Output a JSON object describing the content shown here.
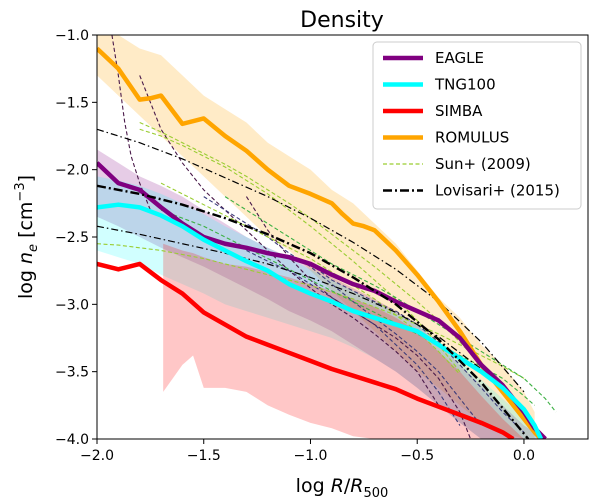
{
  "chart_data": {
    "type": "line",
    "title": "Density",
    "xlabel_main": "log ",
    "xlabel_var": "R",
    "xlabel_sep": "/",
    "xlabel_var2": "R",
    "xlabel_sub": "500",
    "ylabel_main": "log ",
    "ylabel_var": "n",
    "ylabel_sub": "e",
    "ylabel_unit": " [cm",
    "ylabel_sup": "−3",
    "ylabel_end": "]",
    "xlim": [
      -2.0,
      0.3
    ],
    "ylim": [
      -4.0,
      -1.0
    ],
    "x_ticks": [
      -2.0,
      -1.5,
      -1.0,
      -0.5,
      0.0
    ],
    "x_tick_labels": [
      "−2.0",
      "−1.5",
      "−1.0",
      "−0.5",
      "0.0"
    ],
    "y_ticks": [
      -4.0,
      -3.5,
      -3.0,
      -2.5,
      -2.0,
      -1.5,
      -1.0
    ],
    "y_tick_labels": [
      "−4.0",
      "−3.5",
      "−3.0",
      "−2.5",
      "−2.0",
      "−1.5",
      "−1.0"
    ],
    "grid": false,
    "legend_position": "top-right",
    "legend": [
      {
        "label": "EAGLE",
        "color": "#800080",
        "style": "solid"
      },
      {
        "label": "TNG100",
        "color": "#00ffff",
        "style": "solid"
      },
      {
        "label": "SIMBA",
        "color": "#ff0000",
        "style": "solid"
      },
      {
        "label": "ROMULUS",
        "color": "#ffa500",
        "style": "solid"
      },
      {
        "label": "Sun+ (2009)",
        "color": "#9acd32",
        "style": "dashed"
      },
      {
        "label": "Lovisari+ (2015)",
        "color": "#000000",
        "style": "dashdot"
      }
    ],
    "bands": [
      {
        "name": "ROMULUS",
        "color": "#ffa500",
        "opacity": 0.22,
        "x": [
          -2.0,
          -1.9,
          -1.8,
          -1.7,
          -1.6,
          -1.5,
          -1.4,
          -1.3,
          -1.2,
          -1.1,
          -1.0,
          -0.9,
          -0.8,
          -0.7,
          -0.6,
          -0.5,
          -0.4,
          -0.3,
          -0.2,
          -0.1,
          0.0,
          0.05
        ],
        "upper": [
          -0.95,
          -1.0,
          -1.1,
          -1.15,
          -1.3,
          -1.45,
          -1.55,
          -1.65,
          -1.8,
          -1.9,
          -2.0,
          -2.15,
          -2.25,
          -2.4,
          -2.55,
          -2.75,
          -2.95,
          -3.1,
          -3.3,
          -3.45,
          -3.65,
          -3.8
        ],
        "lower": [
          -1.3,
          -1.45,
          -1.6,
          -1.75,
          -1.9,
          -2.05,
          -2.2,
          -2.35,
          -2.5,
          -2.6,
          -2.75,
          -2.9,
          -3.05,
          -3.2,
          -3.35,
          -3.5,
          -3.62,
          -3.75,
          -3.88,
          -3.95,
          -4.0,
          -4.0
        ]
      },
      {
        "name": "EAGLE",
        "color": "#800080",
        "opacity": 0.2,
        "x": [
          -2.0,
          -1.9,
          -1.8,
          -1.7,
          -1.6,
          -1.5,
          -1.4,
          -1.3,
          -1.2,
          -1.1,
          -1.0,
          -0.9,
          -0.8,
          -0.7,
          -0.6,
          -0.5,
          -0.4,
          -0.3,
          -0.2,
          -0.1,
          0.0,
          0.1
        ],
        "upper": [
          -1.85,
          -1.95,
          -2.05,
          -2.12,
          -2.2,
          -2.3,
          -2.4,
          -2.5,
          -2.58,
          -2.65,
          -2.72,
          -2.8,
          -2.88,
          -2.96,
          -3.05,
          -3.15,
          -3.3,
          -3.45,
          -3.6,
          -3.75,
          -3.9,
          -4.0
        ],
        "lower": [
          -2.35,
          -2.42,
          -2.5,
          -2.58,
          -2.65,
          -2.72,
          -2.8,
          -2.88,
          -2.96,
          -3.05,
          -3.12,
          -3.2,
          -3.3,
          -3.4,
          -3.5,
          -3.62,
          -3.75,
          -3.88,
          -4.0,
          -4.0,
          -4.0,
          -4.0
        ]
      },
      {
        "name": "TNG100",
        "color": "#00ffff",
        "opacity": 0.18,
        "x": [
          -2.0,
          -1.9,
          -1.8,
          -1.7,
          -1.6,
          -1.5,
          -1.4,
          -1.3,
          -1.2,
          -1.1,
          -1.0,
          -0.9,
          -0.8,
          -0.7,
          -0.6,
          -0.5,
          -0.4,
          -0.3,
          -0.2,
          -0.1,
          0.0,
          0.1
        ],
        "upper": [
          -2.05,
          -2.08,
          -2.12,
          -2.18,
          -2.25,
          -2.33,
          -2.42,
          -2.5,
          -2.58,
          -2.66,
          -2.74,
          -2.82,
          -2.9,
          -2.98,
          -3.06,
          -3.15,
          -3.28,
          -3.42,
          -3.56,
          -3.7,
          -3.85,
          -4.0
        ],
        "lower": [
          -2.6,
          -2.65,
          -2.7,
          -2.78,
          -2.85,
          -2.92,
          -3.0,
          -3.05,
          -3.1,
          -3.15,
          -3.2,
          -3.25,
          -3.32,
          -3.4,
          -3.5,
          -3.62,
          -3.75,
          -3.88,
          -4.0,
          -4.0,
          -4.0,
          -4.0
        ]
      },
      {
        "name": "SIMBA",
        "color": "#ff0000",
        "opacity": 0.22,
        "x": [
          -1.69,
          -1.69,
          -1.6,
          -1.55,
          -1.5,
          -1.4,
          -1.3,
          -1.2,
          -1.1,
          -1.0,
          -0.9,
          -0.8,
          -0.7,
          -0.6,
          -0.5,
          -0.4,
          -0.3,
          -0.2,
          -0.1,
          0.0
        ],
        "upper": [
          -2.55,
          -2.55,
          -2.6,
          -2.62,
          -2.65,
          -2.7,
          -2.72,
          -2.76,
          -2.8,
          -2.85,
          -2.9,
          -2.96,
          -3.02,
          -3.1,
          -3.2,
          -3.35,
          -3.5,
          -3.68,
          -3.85,
          -4.0
        ],
        "lower": [
          -3.65,
          -3.65,
          -3.45,
          -3.38,
          -3.62,
          -3.62,
          -3.65,
          -3.75,
          -3.82,
          -3.88,
          -3.92,
          -3.98,
          -4.0,
          -4.0,
          -4.0,
          -4.0,
          -4.0,
          -4.0,
          -4.0,
          -4.0
        ]
      }
    ],
    "thin_lines": [
      {
        "color": "#4a1a4a",
        "style": "dashed",
        "x": [
          -1.93,
          -1.9,
          -1.87,
          -1.84,
          -1.8,
          -1.75
        ],
        "y": [
          -1.0,
          -1.3,
          -1.65,
          -1.9,
          -2.1,
          -2.3
        ]
      },
      {
        "color": "#4a1a4a",
        "style": "dashed",
        "x": [
          -1.8,
          -1.75,
          -1.7,
          -1.6,
          -1.5,
          -1.4,
          -1.3,
          -1.2,
          -1.1,
          -1.0,
          -0.9,
          -0.8,
          -0.7,
          -0.6,
          -0.5,
          -0.4
        ],
        "y": [
          -1.3,
          -1.5,
          -1.7,
          -1.95,
          -2.15,
          -2.3,
          -2.45,
          -2.6,
          -2.75,
          -2.88,
          -3.0,
          -3.1,
          -3.22,
          -3.35,
          -3.5,
          -3.75
        ]
      },
      {
        "color": "#4a1a4a",
        "style": "dashed",
        "x": [
          -1.3,
          -1.2,
          -1.1,
          -1.0,
          -0.9,
          -0.8,
          -0.7,
          -0.6,
          -0.5,
          -0.4,
          -0.3,
          -0.25
        ],
        "y": [
          -2.2,
          -2.45,
          -2.65,
          -2.82,
          -2.95,
          -3.05,
          -3.15,
          -3.25,
          -3.38,
          -3.55,
          -3.8,
          -4.0
        ]
      },
      {
        "color": "#3b3b7a",
        "style": "dashed",
        "x": [
          -1.5,
          -1.4,
          -1.3,
          -1.2,
          -1.1,
          -1.0,
          -0.9,
          -0.8,
          -0.7,
          -0.6,
          -0.5,
          -0.4,
          -0.3,
          -0.2
        ],
        "y": [
          -2.2,
          -2.3,
          -2.4,
          -2.5,
          -2.62,
          -2.72,
          -2.85,
          -2.98,
          -3.1,
          -3.22,
          -3.35,
          -3.5,
          -3.7,
          -3.9
        ]
      },
      {
        "color": "#3b3b7a",
        "style": "dashed",
        "x": [
          -1.0,
          -0.9,
          -0.8,
          -0.7,
          -0.6,
          -0.5,
          -0.4,
          -0.3,
          -0.2,
          -0.1,
          0.0
        ],
        "y": [
          -2.7,
          -2.82,
          -2.9,
          -2.98,
          -3.05,
          -3.15,
          -3.28,
          -3.45,
          -3.62,
          -3.8,
          -3.95
        ]
      },
      {
        "color": "#3b3b7a",
        "style": "dashed",
        "x": [
          -1.3,
          -1.2,
          -1.1,
          -1.0,
          -0.9,
          -0.8,
          -0.7,
          -0.6,
          -0.5,
          -0.4,
          -0.3
        ],
        "y": [
          -2.6,
          -2.68,
          -2.75,
          -2.85,
          -2.95,
          -3.05,
          -3.15,
          -3.3,
          -3.45,
          -3.65,
          -3.9
        ]
      },
      {
        "color": "#9acd32",
        "style": "dashed",
        "x": [
          -1.8,
          -1.7,
          -1.6,
          -1.5,
          -1.4,
          -1.3,
          -1.2,
          -1.1,
          -1.0,
          -0.9,
          -0.8,
          -0.7,
          -0.6,
          -0.5,
          -0.4,
          -0.3
        ],
        "y": [
          -1.7,
          -1.75,
          -1.82,
          -1.9,
          -1.98,
          -2.08,
          -2.18,
          -2.3,
          -2.42,
          -2.55,
          -2.68,
          -2.82,
          -2.96,
          -3.12,
          -3.3,
          -3.5
        ]
      },
      {
        "color": "#9acd32",
        "style": "dashed",
        "x": [
          -1.8,
          -1.7,
          -1.6,
          -1.5,
          -1.4,
          -1.3,
          -1.2,
          -1.1,
          -1.0,
          -0.9,
          -0.8,
          -0.7,
          -0.6,
          -0.5,
          -0.4,
          -0.3,
          -0.2
        ],
        "y": [
          -1.65,
          -1.72,
          -1.8,
          -1.88,
          -1.96,
          -2.05,
          -2.15,
          -2.25,
          -2.36,
          -2.48,
          -2.6,
          -2.72,
          -2.85,
          -2.98,
          -3.12,
          -3.28,
          -3.45
        ]
      },
      {
        "color": "#9acd32",
        "style": "dashed",
        "x": [
          -1.7,
          -1.6,
          -1.5,
          -1.4,
          -1.3,
          -1.2,
          -1.1,
          -1.0,
          -0.9,
          -0.8,
          -0.7,
          -0.6,
          -0.5,
          -0.4,
          -0.3
        ],
        "y": [
          -2.1,
          -2.18,
          -2.26,
          -2.34,
          -2.42,
          -2.5,
          -2.58,
          -2.66,
          -2.76,
          -2.86,
          -2.96,
          -3.08,
          -3.2,
          -3.35,
          -3.52
        ]
      },
      {
        "color": "#9acd32",
        "style": "dashed",
        "x": [
          -2.0,
          -1.9,
          -1.8,
          -1.7,
          -1.6,
          -1.5,
          -1.4,
          -1.3,
          -1.2,
          -1.1,
          -1.0,
          -0.9,
          -0.8,
          -0.7,
          -0.6,
          -0.5,
          -0.4,
          -0.3,
          -0.2,
          -0.1,
          0.0
        ],
        "y": [
          -2.55,
          -2.56,
          -2.58,
          -2.6,
          -2.63,
          -2.66,
          -2.7,
          -2.74,
          -2.78,
          -2.82,
          -2.86,
          -2.91,
          -2.96,
          -3.02,
          -3.08,
          -3.15,
          -3.22,
          -3.3,
          -3.38,
          -3.46,
          -3.55
        ]
      },
      {
        "color": "#3cb043",
        "style": "dashed",
        "x": [
          -1.7,
          -1.6,
          -1.5,
          -1.4,
          -1.3,
          -1.2,
          -1.1,
          -1.0,
          -0.9,
          -0.8,
          -0.7,
          -0.6,
          -0.5,
          -0.4,
          -0.3,
          -0.2,
          -0.1,
          0.0,
          0.05
        ],
        "y": [
          -2.3,
          -2.36,
          -2.42,
          -2.5,
          -2.58,
          -2.66,
          -2.74,
          -2.82,
          -2.9,
          -2.98,
          -3.06,
          -3.14,
          -3.22,
          -3.3,
          -3.38,
          -3.46,
          -3.55,
          -3.68,
          -3.75
        ]
      },
      {
        "color": "#3cb043",
        "style": "dashed",
        "x": [
          -1.4,
          -1.3,
          -1.2,
          -1.1,
          -1.0,
          -0.9,
          -0.8,
          -0.7,
          -0.6,
          -0.5,
          -0.4,
          -0.3,
          -0.2,
          -0.1,
          0.0,
          0.1,
          0.15
        ],
        "y": [
          -2.2,
          -2.3,
          -2.4,
          -2.5,
          -2.6,
          -2.7,
          -2.78,
          -2.86,
          -2.95,
          -3.05,
          -3.15,
          -3.25,
          -3.35,
          -3.45,
          -3.55,
          -3.7,
          -3.8
        ]
      },
      {
        "color": "#000000",
        "style": "dashdot",
        "x": [
          -2.0,
          -1.8,
          -1.6,
          -1.4,
          -1.2,
          -1.0,
          -0.8,
          -0.6,
          -0.4,
          -0.2,
          0.0
        ],
        "y": [
          -1.7,
          -1.8,
          -1.92,
          -2.06,
          -2.2,
          -2.36,
          -2.54,
          -2.74,
          -2.98,
          -3.28,
          -3.65
        ]
      },
      {
        "color": "#000000",
        "style": "dashdot",
        "x": [
          -2.0,
          -1.8,
          -1.6,
          -1.4,
          -1.2,
          -1.0,
          -0.8,
          -0.6,
          -0.4,
          -0.2,
          0.0
        ],
        "y": [
          -2.42,
          -2.48,
          -2.55,
          -2.62,
          -2.7,
          -2.8,
          -2.92,
          -3.06,
          -3.24,
          -3.48,
          -3.8
        ]
      }
    ],
    "series": [
      {
        "name": "ROMULUS",
        "color": "#ffa500",
        "width": 4.5,
        "style": "solid",
        "x": [
          -2.0,
          -1.9,
          -1.8,
          -1.75,
          -1.7,
          -1.6,
          -1.5,
          -1.4,
          -1.3,
          -1.2,
          -1.1,
          -1.0,
          -0.9,
          -0.85,
          -0.8,
          -0.75,
          -0.7,
          -0.6,
          -0.5,
          -0.4,
          -0.3,
          -0.2,
          -0.1,
          0.0,
          0.05,
          0.08
        ],
        "y": [
          -1.1,
          -1.25,
          -1.48,
          -1.47,
          -1.45,
          -1.66,
          -1.62,
          -1.75,
          -1.86,
          -2.0,
          -2.12,
          -2.18,
          -2.25,
          -2.33,
          -2.4,
          -2.42,
          -2.45,
          -2.6,
          -2.78,
          -2.98,
          -3.2,
          -3.45,
          -3.65,
          -3.85,
          -3.95,
          -4.0
        ]
      },
      {
        "name": "EAGLE",
        "color": "#800080",
        "width": 4.5,
        "style": "solid",
        "x": [
          -2.0,
          -1.9,
          -1.8,
          -1.7,
          -1.6,
          -1.5,
          -1.4,
          -1.3,
          -1.2,
          -1.1,
          -1.0,
          -0.9,
          -0.8,
          -0.7,
          -0.6,
          -0.5,
          -0.4,
          -0.3,
          -0.2,
          -0.1,
          0.0,
          0.05,
          0.1
        ],
        "y": [
          -1.95,
          -2.1,
          -2.15,
          -2.28,
          -2.4,
          -2.5,
          -2.55,
          -2.58,
          -2.62,
          -2.65,
          -2.7,
          -2.78,
          -2.85,
          -2.9,
          -2.98,
          -3.05,
          -3.12,
          -3.25,
          -3.45,
          -3.6,
          -3.8,
          -3.92,
          -4.0
        ]
      },
      {
        "name": "TNG100",
        "color": "#00ffff",
        "width": 4.5,
        "style": "solid",
        "x": [
          -2.0,
          -1.9,
          -1.8,
          -1.7,
          -1.6,
          -1.5,
          -1.4,
          -1.3,
          -1.2,
          -1.1,
          -1.0,
          -0.9,
          -0.8,
          -0.7,
          -0.6,
          -0.5,
          -0.4,
          -0.3,
          -0.2,
          -0.1,
          0.0,
          0.05,
          0.08
        ],
        "y": [
          -2.28,
          -2.26,
          -2.28,
          -2.34,
          -2.42,
          -2.52,
          -2.6,
          -2.68,
          -2.75,
          -2.85,
          -2.92,
          -2.98,
          -3.05,
          -3.1,
          -3.15,
          -3.2,
          -3.3,
          -3.4,
          -3.5,
          -3.62,
          -3.78,
          -3.9,
          -4.0
        ]
      },
      {
        "name": "SIMBA",
        "color": "#ff0000",
        "width": 4.5,
        "style": "solid",
        "x": [
          -2.0,
          -1.9,
          -1.8,
          -1.7,
          -1.6,
          -1.5,
          -1.4,
          -1.3,
          -1.2,
          -1.1,
          -1.0,
          -0.9,
          -0.8,
          -0.7,
          -0.6,
          -0.5,
          -0.4,
          -0.3,
          -0.2,
          -0.1,
          -0.05
        ],
        "y": [
          -2.7,
          -2.74,
          -2.7,
          -2.82,
          -2.92,
          -3.06,
          -3.15,
          -3.24,
          -3.3,
          -3.36,
          -3.42,
          -3.48,
          -3.53,
          -3.58,
          -3.63,
          -3.7,
          -3.76,
          -3.82,
          -3.88,
          -3.95,
          -4.0
        ]
      },
      {
        "name": "Lovisari+ (2015)",
        "color": "#000000",
        "width": 2.4,
        "style": "dashdot",
        "x": [
          -2.0,
          -1.8,
          -1.6,
          -1.4,
          -1.2,
          -1.0,
          -0.8,
          -0.6,
          -0.4,
          -0.2,
          0.0,
          0.02
        ],
        "y": [
          -2.12,
          -2.18,
          -2.26,
          -2.36,
          -2.48,
          -2.62,
          -2.8,
          -3.0,
          -3.26,
          -3.58,
          -3.96,
          -4.0
        ]
      }
    ]
  }
}
